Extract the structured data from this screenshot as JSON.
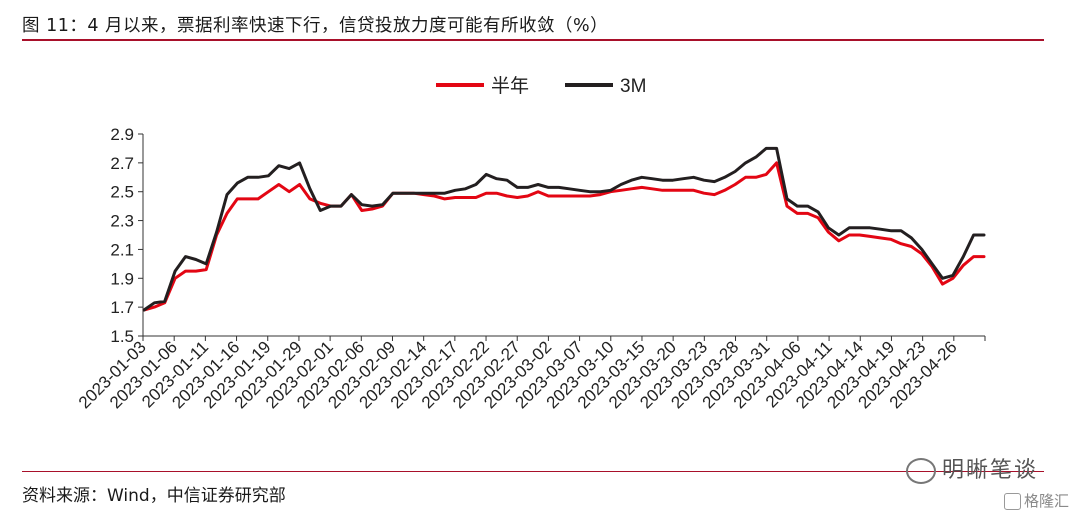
{
  "header": {
    "title": "图 11：4 月以来，票据利率快速下行，信贷投放力度可能有所收敛（%）"
  },
  "footer": {
    "source": "资料来源：Wind，中信证券研究部"
  },
  "watermark": {
    "text": "明晰笔谈",
    "badge": "格隆汇"
  },
  "colors": {
    "accent_rule": "#a8102a",
    "series_half_year": "#e30613",
    "series_3m": "#231f20"
  },
  "chart_data": {
    "type": "line",
    "title": "",
    "xlabel": "",
    "ylabel": "",
    "ylim": [
      1.5,
      2.9
    ],
    "yticks": [
      "2.9",
      "2.7",
      "2.5",
      "2.3",
      "2.1",
      "1.9",
      "1.7",
      "1.5"
    ],
    "grid": false,
    "legend": "top-center",
    "x_tick_labels": [
      "2023-01-03",
      "2023-01-06",
      "2023-01-11",
      "2023-01-16",
      "2023-01-19",
      "2023-01-29",
      "2023-02-01",
      "2023-02-06",
      "2023-02-09",
      "2023-02-14",
      "2023-02-17",
      "2023-02-22",
      "2023-02-27",
      "2023-03-02",
      "2023-03-07",
      "2023-03-10",
      "2023-03-15",
      "2023-03-20",
      "2023-03-23",
      "2023-03-28",
      "2023-03-31",
      "2023-04-06",
      "2023-04-11",
      "2023-04-14",
      "2023-04-19",
      "2023-04-23",
      "2023-04-26"
    ],
    "series": [
      {
        "name": "半年",
        "color": "#e30613",
        "values": [
          1.68,
          1.7,
          1.73,
          1.9,
          1.95,
          1.95,
          1.96,
          2.2,
          2.35,
          2.45,
          2.45,
          2.45,
          2.5,
          2.55,
          2.5,
          2.55,
          2.45,
          2.42,
          2.4,
          2.4,
          2.48,
          2.37,
          2.38,
          2.4,
          2.49,
          2.49,
          2.49,
          2.48,
          2.47,
          2.45,
          2.46,
          2.46,
          2.46,
          2.49,
          2.49,
          2.47,
          2.46,
          2.47,
          2.5,
          2.47,
          2.47,
          2.47,
          2.47,
          2.47,
          2.48,
          2.5,
          2.51,
          2.52,
          2.53,
          2.52,
          2.51,
          2.51,
          2.51,
          2.51,
          2.49,
          2.48,
          2.51,
          2.55,
          2.6,
          2.6,
          2.62,
          2.7,
          2.4,
          2.35,
          2.35,
          2.32,
          2.22,
          2.16,
          2.2,
          2.2,
          2.19,
          2.18,
          2.17,
          2.14,
          2.12,
          2.07,
          1.98,
          1.86,
          1.9,
          1.99,
          2.05,
          2.05
        ]
      },
      {
        "name": "3M",
        "color": "#231f20",
        "values": [
          1.68,
          1.73,
          1.74,
          1.95,
          2.05,
          2.03,
          2.0,
          2.22,
          2.48,
          2.56,
          2.6,
          2.6,
          2.61,
          2.68,
          2.66,
          2.7,
          2.52,
          2.37,
          2.4,
          2.4,
          2.48,
          2.41,
          2.4,
          2.41,
          2.49,
          2.49,
          2.49,
          2.49,
          2.49,
          2.49,
          2.51,
          2.52,
          2.55,
          2.62,
          2.59,
          2.58,
          2.53,
          2.53,
          2.55,
          2.53,
          2.53,
          2.52,
          2.51,
          2.5,
          2.5,
          2.51,
          2.55,
          2.58,
          2.6,
          2.59,
          2.58,
          2.58,
          2.59,
          2.6,
          2.58,
          2.57,
          2.6,
          2.64,
          2.7,
          2.74,
          2.8,
          2.8,
          2.45,
          2.4,
          2.4,
          2.36,
          2.25,
          2.2,
          2.25,
          2.25,
          2.25,
          2.24,
          2.23,
          2.23,
          2.18,
          2.1,
          2.0,
          1.9,
          1.92,
          2.05,
          2.2,
          2.2
        ]
      }
    ]
  }
}
